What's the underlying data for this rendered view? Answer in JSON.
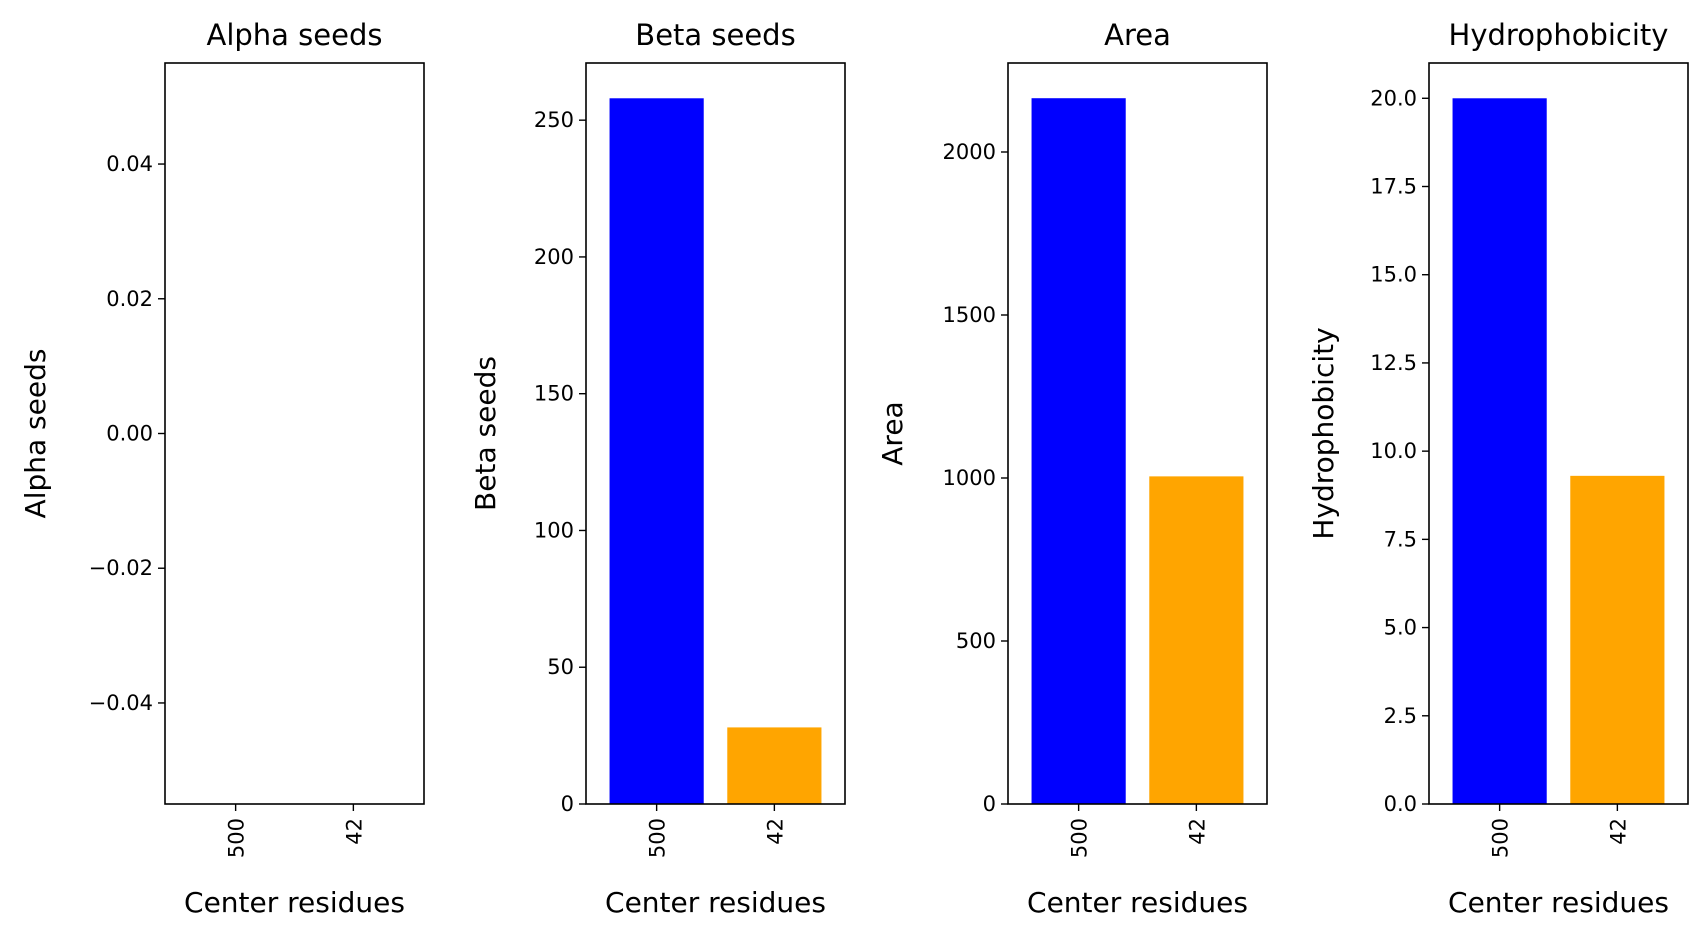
{
  "chart_data": [
    {
      "type": "bar",
      "title": "Alpha seeds",
      "xlabel": "Center residues",
      "ylabel": "Alpha seeds",
      "categories": [
        "500",
        "42"
      ],
      "values": [
        0,
        0
      ],
      "colors": [
        "#0000ff",
        "#ffa500"
      ],
      "ylim": [
        -0.055,
        0.055
      ],
      "yticks": [
        -0.04,
        -0.02,
        0.0,
        0.02,
        0.04
      ],
      "ytick_labels": [
        "−0.04",
        "−0.02",
        "0.00",
        "0.02",
        "0.04"
      ],
      "grid": false
    },
    {
      "type": "bar",
      "title": "Beta seeds",
      "xlabel": "Center residues",
      "ylabel": "Beta seeds",
      "categories": [
        "500",
        "42"
      ],
      "values": [
        258,
        28
      ],
      "colors": [
        "#0000ff",
        "#ffa500"
      ],
      "ylim": [
        0,
        270.9
      ],
      "yticks": [
        0,
        50,
        100,
        150,
        200,
        250
      ],
      "ytick_labels": [
        "0",
        "50",
        "100",
        "150",
        "200",
        "250"
      ],
      "grid": false
    },
    {
      "type": "bar",
      "title": "Area",
      "xlabel": "Center residues",
      "ylabel": "Area",
      "categories": [
        "500",
        "42"
      ],
      "values": [
        2165,
        1005
      ],
      "colors": [
        "#0000ff",
        "#ffa500"
      ],
      "ylim": [
        0,
        2273
      ],
      "yticks": [
        0,
        500,
        1000,
        1500,
        2000
      ],
      "ytick_labels": [
        "0",
        "500",
        "1000",
        "1500",
        "2000"
      ],
      "grid": false
    },
    {
      "type": "bar",
      "title": "Hydrophobicity",
      "xlabel": "Center residues",
      "ylabel": "Hydrophobicity",
      "categories": [
        "500",
        "42"
      ],
      "values": [
        20.0,
        9.3
      ],
      "colors": [
        "#0000ff",
        "#ffa500"
      ],
      "ylim": [
        0,
        21.0
      ],
      "yticks": [
        0.0,
        2.5,
        5.0,
        7.5,
        10.0,
        12.5,
        15.0,
        17.5,
        20.0
      ],
      "ytick_labels": [
        "0.0",
        "2.5",
        "5.0",
        "7.5",
        "10.0",
        "12.5",
        "15.0",
        "17.5",
        "20.0"
      ],
      "grid": false
    }
  ]
}
